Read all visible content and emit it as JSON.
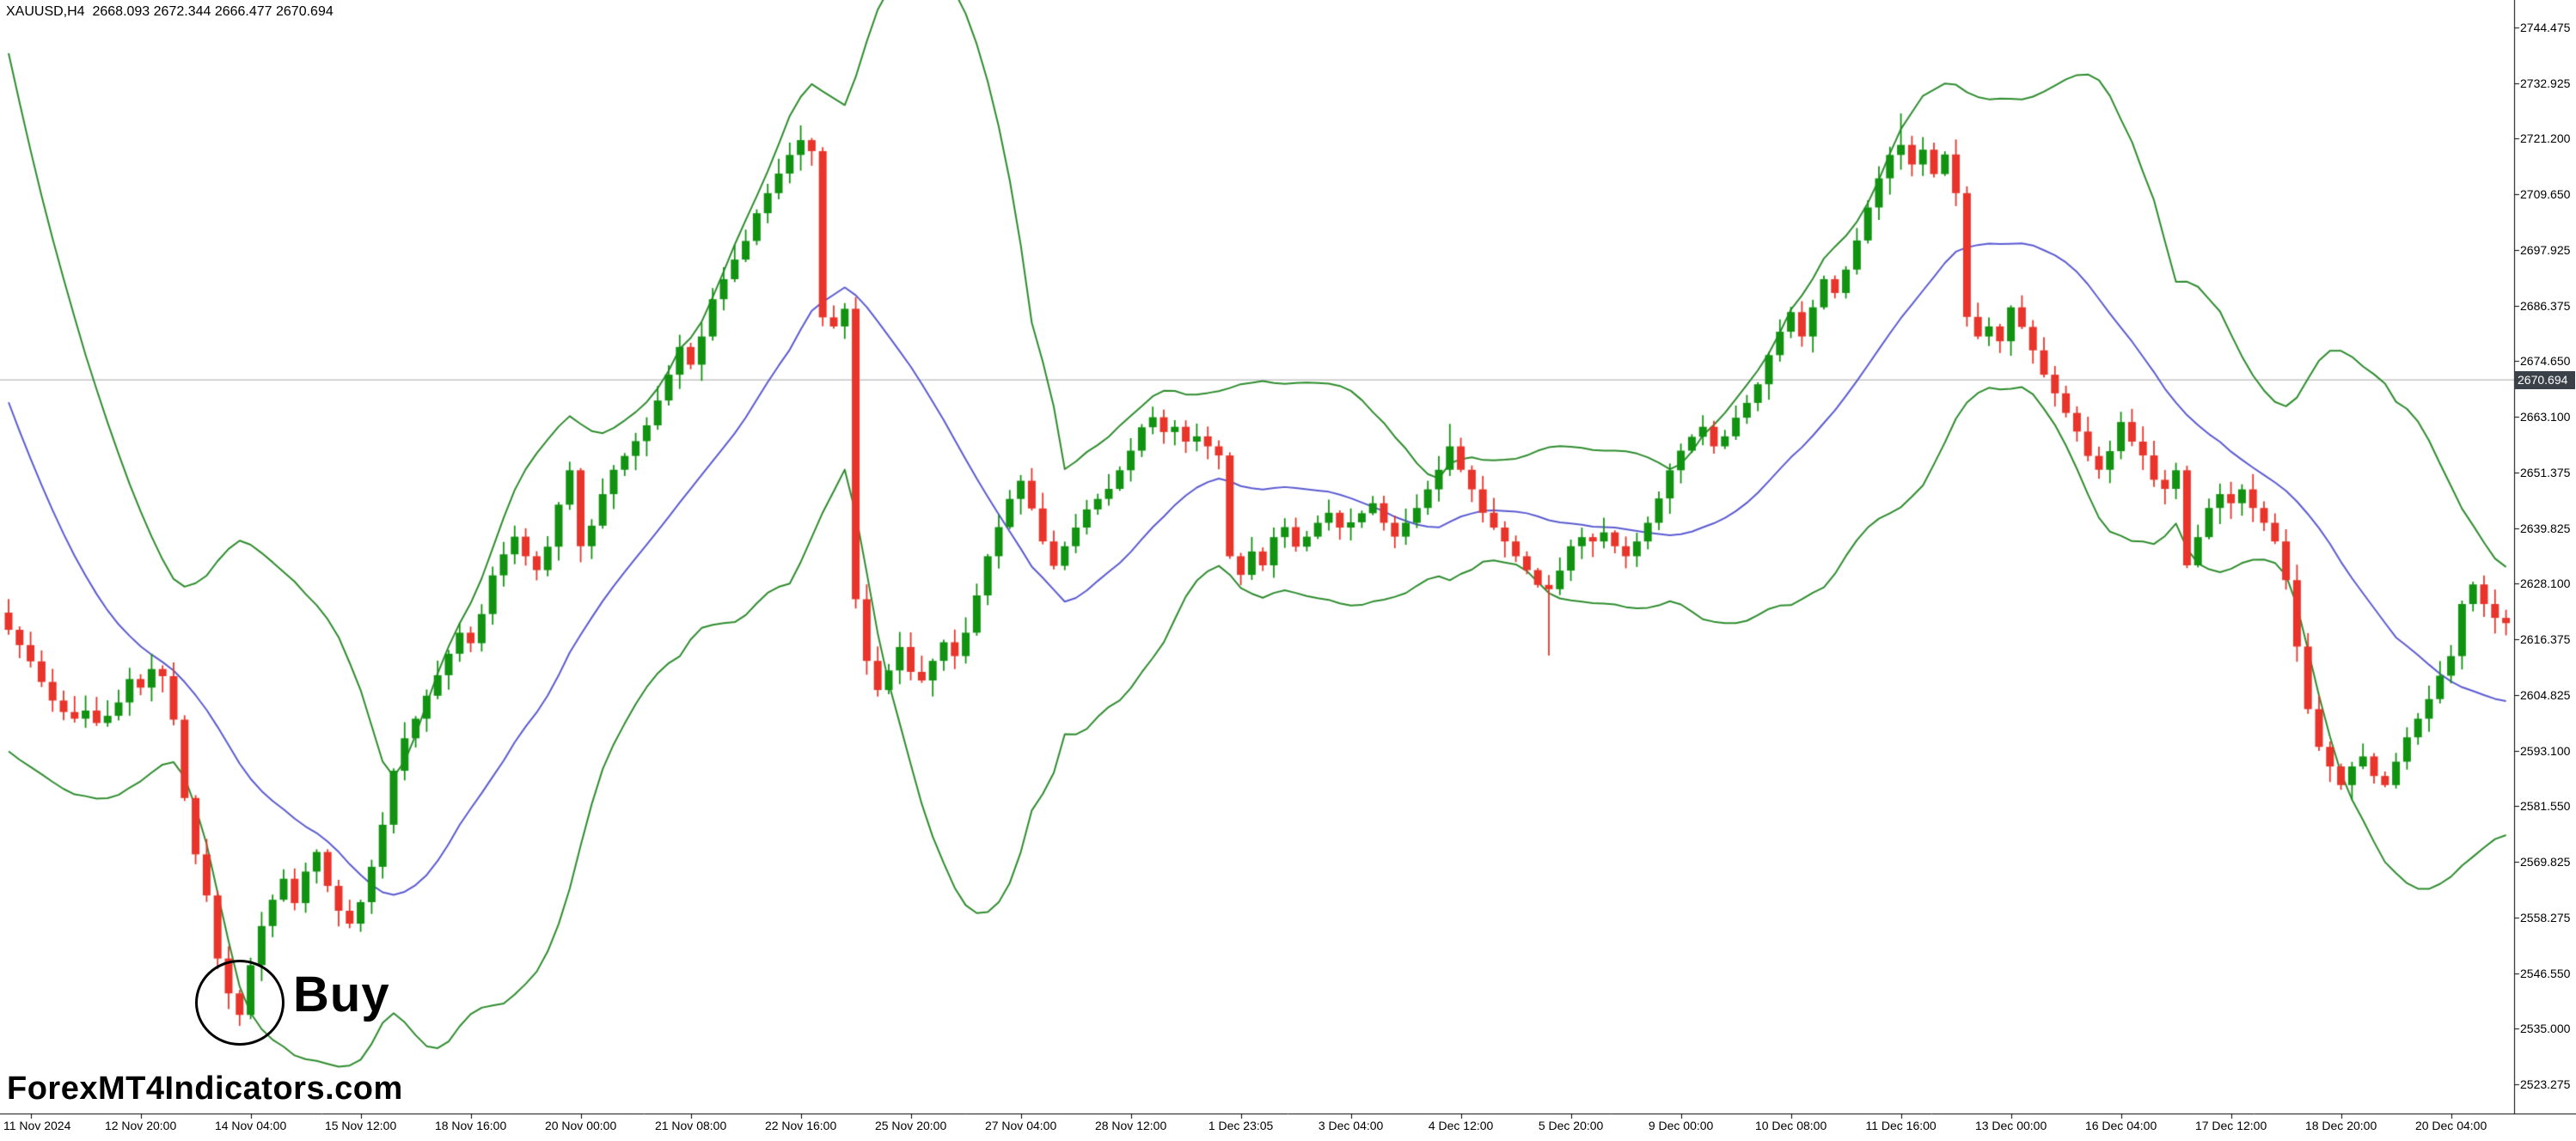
{
  "header": {
    "title": "XAUUSD,H4  2668.093 2672.344 2666.477 2670.694"
  },
  "watermark": {
    "text": "ForexMT4Indicators.com"
  },
  "annotation": {
    "label": "Buy"
  },
  "chart_data": {
    "type": "candlestick",
    "symbol": "XAUUSD",
    "timeframe": "H4",
    "last_quote": {
      "open": 2668.093,
      "high": 2672.344,
      "low": 2666.477,
      "close": 2670.694
    },
    "current_price": 2670.694,
    "current_price_label": "2670.694",
    "y_range": [
      2523.275,
      2744.475
    ],
    "grid": "off",
    "indicator": {
      "name": "Bollinger Bands",
      "period": 20,
      "deviation": 2
    },
    "colors": {
      "up": "#119211",
      "down": "#e8342a",
      "band": "#2d8c2d",
      "middle": "#5a5ad2",
      "price_line": "#c4c4c4",
      "price_tag_bg": "#3a4149",
      "price_tag_text": "#ffffff"
    },
    "price_axis_labels": [
      "2744.475",
      "2732.925",
      "2721.200",
      "2709.650",
      "2697.925",
      "2686.375",
      "2674.650",
      "2663.100",
      "2651.375",
      "2639.825",
      "2628.100",
      "2616.375",
      "2604.825",
      "2593.100",
      "2581.550",
      "2569.825",
      "2558.275",
      "2546.550",
      "2535.000",
      "2523.275"
    ],
    "time_labels": [
      "11 Nov 2024",
      "12 Nov 20:00",
      "14 Nov 04:00",
      "15 Nov 12:00",
      "18 Nov 16:00",
      "20 Nov 00:00",
      "21 Nov 08:00",
      "22 Nov 16:00",
      "25 Nov 20:00",
      "27 Nov 04:00",
      "28 Nov 12:00",
      "1 Dec 23:05",
      "3 Dec 04:00",
      "4 Dec 12:00",
      "5 Dec 20:00",
      "9 Dec 00:00",
      "10 Dec 08:00",
      "11 Dec 16:00",
      "13 Dec 00:00",
      "16 Dec 04:00",
      "17 Dec 12:00",
      "18 Dec 20:00",
      "20 Dec 04:00"
    ],
    "open_first": 2622.0,
    "pre_closes": [
      2745.0,
      2736.0,
      2727.0,
      2718.0,
      2709.0,
      2700.0,
      2692.0,
      2684.0,
      2676.0,
      2669.0,
      2662.0,
      2656.0,
      2650.0,
      2645.0,
      2640.0,
      2635.0,
      2631.0,
      2627.0,
      2624.0,
      2621.0
    ],
    "closes": [
      2618.4,
      2615.2,
      2611.8,
      2607.5,
      2603.6,
      2601.2,
      2599.8,
      2601.5,
      2598.9,
      2600.4,
      2603.2,
      2608.1,
      2606.3,
      2610.2,
      2608.7,
      2599.6,
      2583.2,
      2571.4,
      2562.8,
      2549.6,
      2542.3,
      2537.8,
      2548.2,
      2556.4,
      2561.9,
      2566.3,
      2561.2,
      2567.8,
      2571.9,
      2564.8,
      2559.6,
      2556.9,
      2561.4,
      2568.8,
      2577.6,
      2588.9,
      2595.7,
      2599.8,
      2604.6,
      2608.9,
      2613.4,
      2617.8,
      2615.6,
      2621.7,
      2629.8,
      2634.2,
      2637.9,
      2633.8,
      2630.9,
      2635.8,
      2644.6,
      2651.8,
      2635.9,
      2640.2,
      2646.8,
      2651.9,
      2654.8,
      2657.9,
      2661.2,
      2666.4,
      2671.8,
      2677.6,
      2673.9,
      2679.8,
      2687.6,
      2691.8,
      2695.9,
      2699.8,
      2705.6,
      2709.8,
      2713.9,
      2717.8,
      2720.9,
      2718.6,
      2683.8,
      2681.9,
      2685.6,
      2624.8,
      2611.9,
      2605.8,
      2609.9,
      2614.8,
      2609.6,
      2607.8,
      2611.9,
      2615.8,
      2612.9,
      2617.8,
      2625.6,
      2633.8,
      2639.9,
      2645.8,
      2649.6,
      2643.8,
      2636.9,
      2631.8,
      2635.9,
      2639.8,
      2643.6,
      2645.8,
      2647.9,
      2651.8,
      2655.9,
      2660.8,
      2662.9,
      2659.8,
      2660.9,
      2657.8,
      2658.9,
      2656.8,
      2654.9,
      2633.8,
      2629.9,
      2634.8,
      2631.9,
      2637.8,
      2639.9,
      2635.8,
      2637.9,
      2640.8,
      2642.9,
      2639.8,
      2640.9,
      2642.8,
      2644.9,
      2640.8,
      2637.9,
      2640.8,
      2643.9,
      2647.8,
      2651.9,
      2656.8,
      2651.9,
      2647.8,
      2642.9,
      2639.8,
      2636.9,
      2633.8,
      2630.9,
      2627.8,
      2626.9,
      2630.8,
      2635.9,
      2637.8,
      2636.9,
      2638.8,
      2635.9,
      2633.8,
      2636.9,
      2640.8,
      2645.9,
      2651.8,
      2655.9,
      2658.8,
      2660.9,
      2656.8,
      2658.9,
      2662.8,
      2665.9,
      2669.8,
      2675.9,
      2680.8,
      2684.9,
      2679.8,
      2685.9,
      2691.8,
      2688.9,
      2693.8,
      2699.9,
      2706.8,
      2712.9,
      2717.8,
      2719.9,
      2715.8,
      2718.9,
      2713.8,
      2717.9,
      2709.8,
      2683.9,
      2679.8,
      2681.9,
      2678.8,
      2685.9,
      2681.8,
      2676.9,
      2671.8,
      2667.9,
      2663.8,
      2659.9,
      2654.8,
      2651.9,
      2655.8,
      2661.9,
      2657.8,
      2654.9,
      2649.8,
      2647.9,
      2651.8,
      2631.9,
      2637.8,
      2643.9,
      2646.8,
      2644.9,
      2647.8,
      2643.9,
      2640.8,
      2636.9,
      2628.8,
      2614.9,
      2601.8,
      2593.9,
      2589.8,
      2585.9,
      2589.8,
      2591.9,
      2587.8,
      2585.9,
      2590.8,
      2595.9,
      2599.8,
      2603.9,
      2608.8,
      2612.9,
      2623.8,
      2627.9,
      2623.8,
      2620.9,
      2619.8
    ],
    "wick_overrides": {
      "21": {
        "low": 2535.5
      },
      "131": {
        "high": 2661.5
      },
      "140": {
        "low": 2613.0
      },
      "172": {
        "high": 2726.5
      }
    }
  }
}
